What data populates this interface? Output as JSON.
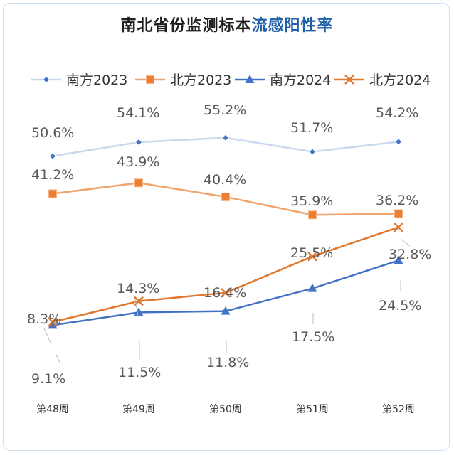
{
  "title_prefix": "南北省份监测标本",
  "title_highlight": "流感阳性率",
  "chart_data": {
    "type": "line",
    "title": "南北省份监测标本流感阳性率",
    "categories": [
      "第48周",
      "第49周",
      "第50周",
      "第51周",
      "第52周"
    ],
    "ylim": [
      0,
      60
    ],
    "grid": false,
    "legend": "top",
    "series": [
      {
        "name": "南方2023",
        "color": "#c9d8ee",
        "marker": "diamond",
        "values": [
          50.6,
          54.1,
          55.2,
          51.7,
          54.2
        ]
      },
      {
        "name": "北方2023",
        "color": "#f0a36a",
        "marker": "square",
        "values": [
          41.2,
          43.9,
          40.4,
          35.9,
          36.2
        ]
      },
      {
        "name": "南方2024",
        "color": "#4472c4",
        "marker": "triangle",
        "values": [
          8.3,
          11.5,
          11.8,
          17.5,
          24.5
        ]
      },
      {
        "name": "北方2024",
        "color": "#e0782f",
        "marker": "x",
        "values": [
          9.1,
          14.3,
          16.4,
          25.5,
          32.8
        ]
      }
    ]
  }
}
